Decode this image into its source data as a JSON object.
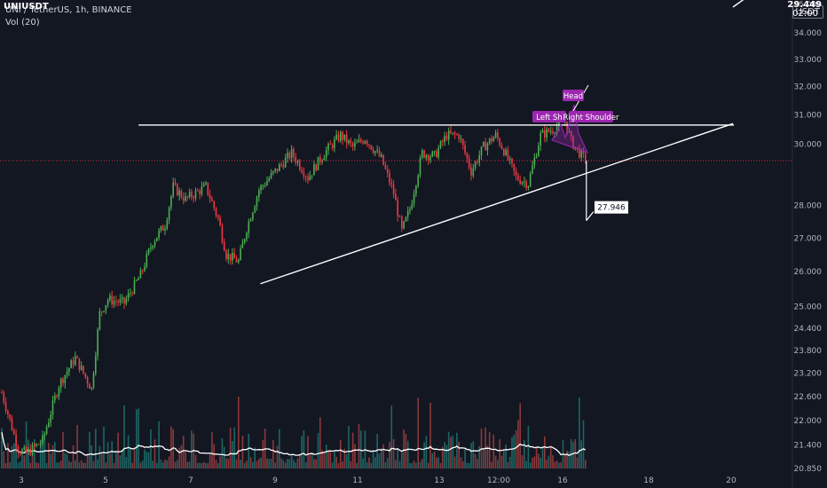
{
  "header": {
    "title": "UNI / TetherUS, 1h, BINANCE",
    "volume_label": "Vol (20)"
  },
  "price_axis": {
    "currency": "USDT",
    "top_label": "35.000",
    "last_symbol": "UNIUSDT",
    "last_price": "29.449",
    "countdown": "02:00"
  },
  "chart_data": {
    "type": "candlestick",
    "symbol": "UNIUSDT",
    "timeframe": "1h",
    "exchange": "BINANCE",
    "y_scale": "log",
    "ylim": [
      20.7,
      35.2
    ],
    "y_ticks": [
      "34.000",
      "33.000",
      "32.000",
      "31.000",
      "30.000",
      "28.000",
      "27.000",
      "26.000",
      "25.000",
      "24.400",
      "23.800",
      "23.200",
      "22.600",
      "22.000",
      "21.400",
      "20.850"
    ],
    "x_ticks": [
      "3",
      "5",
      "7",
      "9",
      "11",
      "13",
      "12:00",
      "16",
      "18",
      "20"
    ],
    "price_path": [
      {
        "t": 0,
        "p": 22.7
      },
      {
        "t": 8,
        "p": 21.3
      },
      {
        "t": 12,
        "p": 21.2
      },
      {
        "t": 20,
        "p": 21.5
      },
      {
        "t": 28,
        "p": 22.9
      },
      {
        "t": 36,
        "p": 23.6
      },
      {
        "t": 44,
        "p": 22.8
      },
      {
        "t": 48,
        "p": 24.8
      },
      {
        "t": 52,
        "p": 25.2
      },
      {
        "t": 60,
        "p": 25.1
      },
      {
        "t": 68,
        "p": 25.9
      },
      {
        "t": 74,
        "p": 26.9
      },
      {
        "t": 80,
        "p": 27.4
      },
      {
        "t": 84,
        "p": 28.6
      },
      {
        "t": 90,
        "p": 28.2
      },
      {
        "t": 100,
        "p": 28.6
      },
      {
        "t": 106,
        "p": 27.6
      },
      {
        "t": 110,
        "p": 26.5
      },
      {
        "t": 116,
        "p": 26.3
      },
      {
        "t": 120,
        "p": 27.3
      },
      {
        "t": 126,
        "p": 28.5
      },
      {
        "t": 134,
        "p": 29.1
      },
      {
        "t": 142,
        "p": 29.7
      },
      {
        "t": 150,
        "p": 28.9
      },
      {
        "t": 158,
        "p": 29.7
      },
      {
        "t": 166,
        "p": 30.3
      },
      {
        "t": 172,
        "p": 29.9
      },
      {
        "t": 178,
        "p": 30.2
      },
      {
        "t": 186,
        "p": 29.5
      },
      {
        "t": 192,
        "p": 28.4
      },
      {
        "t": 196,
        "p": 27.2
      },
      {
        "t": 200,
        "p": 27.9
      },
      {
        "t": 206,
        "p": 29.7
      },
      {
        "t": 212,
        "p": 29.6
      },
      {
        "t": 218,
        "p": 30.3
      },
      {
        "t": 224,
        "p": 30.3
      },
      {
        "t": 230,
        "p": 29.1
      },
      {
        "t": 236,
        "p": 29.9
      },
      {
        "t": 242,
        "p": 30.3
      },
      {
        "t": 246,
        "p": 29.8
      },
      {
        "t": 252,
        "p": 28.9
      },
      {
        "t": 258,
        "p": 28.7
      },
      {
        "t": 264,
        "p": 30.3
      },
      {
        "t": 270,
        "p": 30.5
      },
      {
        "t": 276,
        "p": 30.8
      },
      {
        "t": 279,
        "p": 30.1
      },
      {
        "t": 282,
        "p": 29.8
      },
      {
        "t": 286,
        "p": 29.45
      }
    ],
    "annotations": {
      "resistance": {
        "t1": 67,
        "p1": 30.65,
        "t2": 277,
        "p2": 30.65
      },
      "ascending_support": {
        "t1": 115,
        "p1": 25.65,
        "t2": 277,
        "p2": 30.7
      },
      "target": {
        "label": "27.946",
        "value": 27.946,
        "t": 286
      },
      "head_and_shoulders": [
        {
          "label": "Head"
        },
        {
          "label": "Left Sh"
        },
        {
          "label": "Right Shoulder"
        }
      ]
    },
    "volume": {
      "ma_length": 20
    }
  }
}
